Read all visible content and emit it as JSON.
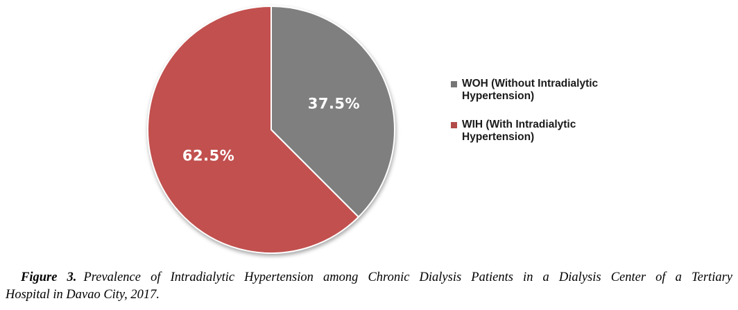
{
  "chart_data": {
    "type": "pie",
    "title": "",
    "labels": [
      "WOH (Without Intradialytic Hypertension)",
      "WIH (With Intradialytic Hypertension)"
    ],
    "values": [
      37.5,
      62.5
    ],
    "value_labels": [
      "37.5%",
      "62.5%"
    ],
    "colors": [
      "#7F7F7F",
      "#C1504E"
    ],
    "start_angle_deg": 0,
    "direction": "clockwise",
    "slice_border_color": "#FFFFFF",
    "value_label_color": "#FFFFFF",
    "legend_position": "right"
  },
  "legend": {
    "items": [
      {
        "label": "WOH (Without Intradialytic Hypertension)",
        "color": "#767676",
        "swatch": "gray-square"
      },
      {
        "label": "WIH (With Intradialytic Hypertension)",
        "color": "#B24A47",
        "swatch": "red-square"
      }
    ]
  },
  "caption": {
    "figure_label": "Figure 3.",
    "line1": "Prevalence of Intradialytic Hypertension among Chronic Dialysis Patients in a Dialysis Center of a Tertiary",
    "line2": "Hospital in Davao City, 2017."
  }
}
